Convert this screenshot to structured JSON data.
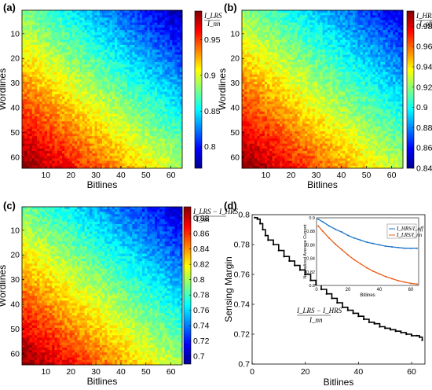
{
  "chart_data": [
    {
      "panel": "(a)",
      "type": "heatmap",
      "xlabel": "Bitlines",
      "ylabel": "Wordlines",
      "x_ticks": [
        "10",
        "20",
        "30",
        "40",
        "50",
        "60"
      ],
      "y_ticks": [
        "10",
        "20",
        "30",
        "40",
        "50",
        "60"
      ],
      "xlim": [
        1,
        64
      ],
      "ylim": [
        1,
        64
      ],
      "colorbar": {
        "label_num": "I_LRS",
        "label_den": "I_nn",
        "range": [
          0.77,
          0.99
        ],
        "ticks": [
          "0.95",
          "0.9",
          "0.85",
          "0.8"
        ],
        "tick_values": [
          0.95,
          0.9,
          0.85,
          0.8
        ]
      },
      "grid_size": [
        64,
        64
      ],
      "value_corners": {
        "top_right": 0.78,
        "top_left": 0.88,
        "bottom_right": 0.89,
        "bottom_left": 0.99
      }
    },
    {
      "panel": "(b)",
      "type": "heatmap",
      "xlabel": "Bitlines",
      "ylabel": "Wordlines",
      "x_ticks": [
        "10",
        "20",
        "30",
        "40",
        "50",
        "60"
      ],
      "y_ticks": [
        "10",
        "20",
        "30",
        "40",
        "50",
        "60"
      ],
      "xlim": [
        1,
        64
      ],
      "ylim": [
        1,
        64
      ],
      "colorbar": {
        "label_num": "I_HRS",
        "label_den": "I_off",
        "range": [
          0.84,
          0.995
        ],
        "ticks": [
          "0.98",
          "0.96",
          "0.94",
          "0.92",
          "0.9",
          "0.88",
          "0.86",
          "0.84"
        ],
        "tick_values": [
          0.98,
          0.96,
          0.94,
          0.92,
          0.9,
          0.88,
          0.86,
          0.84
        ]
      },
      "grid_size": [
        64,
        64
      ],
      "value_corners": {
        "top_right": 0.855,
        "top_left": 0.92,
        "bottom_right": 0.925,
        "bottom_left": 0.995
      }
    },
    {
      "panel": "(c)",
      "type": "heatmap",
      "xlabel": "Bitlines",
      "ylabel": "Wordlines",
      "x_ticks": [
        "10",
        "20",
        "30",
        "40",
        "50",
        "60"
      ],
      "y_ticks": [
        "10",
        "20",
        "30",
        "40",
        "50",
        "60"
      ],
      "xlim": [
        1,
        64
      ],
      "ylim": [
        1,
        64
      ],
      "colorbar": {
        "label_num": "I_LRS − I_HRS",
        "label_den": "I_nn",
        "range": [
          0.69,
          0.895
        ],
        "ticks": [
          "0.88",
          "0.86",
          "0.84",
          "0.82",
          "0.8",
          "0.78",
          "0.76",
          "0.74",
          "0.72",
          "0.7"
        ],
        "tick_values": [
          0.88,
          0.86,
          0.84,
          0.82,
          0.8,
          0.78,
          0.76,
          0.74,
          0.72,
          0.7
        ]
      },
      "grid_size": [
        64,
        64
      ],
      "value_corners": {
        "top_right": 0.705,
        "top_left": 0.79,
        "bottom_right": 0.8,
        "bottom_left": 0.895
      }
    },
    {
      "panel": "(d)",
      "type": "line",
      "xlabel": "Bitlines",
      "ylabel": "Sensing Margin",
      "annotation_num": "I_LRS − I_HRS",
      "annotation_den": "I_nn",
      "xlim": [
        0,
        65
      ],
      "ylim": [
        0.7,
        0.8
      ],
      "x_ticks": [
        "0",
        "20",
        "40",
        "60"
      ],
      "x_tick_values": [
        0,
        20,
        40,
        60
      ],
      "y_ticks": [
        "0.8",
        "0.78",
        "0.76",
        "0.74",
        "0.72",
        "0.7"
      ],
      "y_tick_values": [
        0.8,
        0.78,
        0.76,
        0.74,
        0.72,
        0.7
      ],
      "series": [
        {
          "color": "#000000",
          "x": [
            1,
            2,
            3,
            4,
            5,
            6,
            8,
            10,
            12,
            14,
            16,
            18,
            20,
            22,
            24,
            26,
            28,
            30,
            32,
            34,
            36,
            38,
            40,
            42,
            44,
            46,
            48,
            50,
            52,
            54,
            56,
            58,
            60,
            62,
            63,
            64
          ],
          "y": [
            0.798,
            0.797,
            0.794,
            0.79,
            0.786,
            0.783,
            0.78,
            0.776,
            0.772,
            0.769,
            0.766,
            0.763,
            0.76,
            0.756,
            0.753,
            0.75,
            0.747,
            0.744,
            0.741,
            0.738,
            0.736,
            0.734,
            0.732,
            0.73,
            0.728,
            0.727,
            0.725,
            0.724,
            0.723,
            0.722,
            0.721,
            0.72,
            0.719,
            0.719,
            0.718,
            0.716
          ]
        }
      ],
      "inset": {
        "type": "line",
        "xlabel": "Bitlines",
        "ylabel": "Normalized Average Current",
        "xlim": [
          0,
          65
        ],
        "ylim": [
          0.8,
          0.9
        ],
        "x_ticks": [
          "0",
          "20",
          "40",
          "60"
        ],
        "x_tick_values": [
          0,
          20,
          40,
          60
        ],
        "y_ticks": [
          "0.9",
          "0.88",
          "0.86",
          "0.84",
          "0.82",
          "0.8"
        ],
        "y_tick_values": [
          0.9,
          0.88,
          0.86,
          0.84,
          0.82,
          0.8
        ],
        "series": [
          {
            "legend": "I_HRS/I_off",
            "color": "#1f77c8",
            "x": [
              1,
              4,
              8,
              12,
              16,
              20,
              24,
              28,
              32,
              36,
              40,
              44,
              48,
              52,
              56,
              60,
              64
            ],
            "y": [
              0.898,
              0.894,
              0.888,
              0.883,
              0.879,
              0.874,
              0.87,
              0.867,
              0.864,
              0.862,
              0.86,
              0.858,
              0.857,
              0.856,
              0.855,
              0.855,
              0.855
            ]
          },
          {
            "legend": "I_LRS/I_nn",
            "color": "#e8601c",
            "x": [
              1,
              4,
              8,
              12,
              16,
              20,
              24,
              28,
              32,
              36,
              40,
              44,
              48,
              52,
              56,
              60,
              64
            ],
            "y": [
              0.888,
              0.88,
              0.87,
              0.861,
              0.853,
              0.845,
              0.838,
              0.832,
              0.826,
              0.821,
              0.817,
              0.813,
              0.81,
              0.807,
              0.805,
              0.803,
              0.802
            ]
          }
        ]
      }
    }
  ]
}
